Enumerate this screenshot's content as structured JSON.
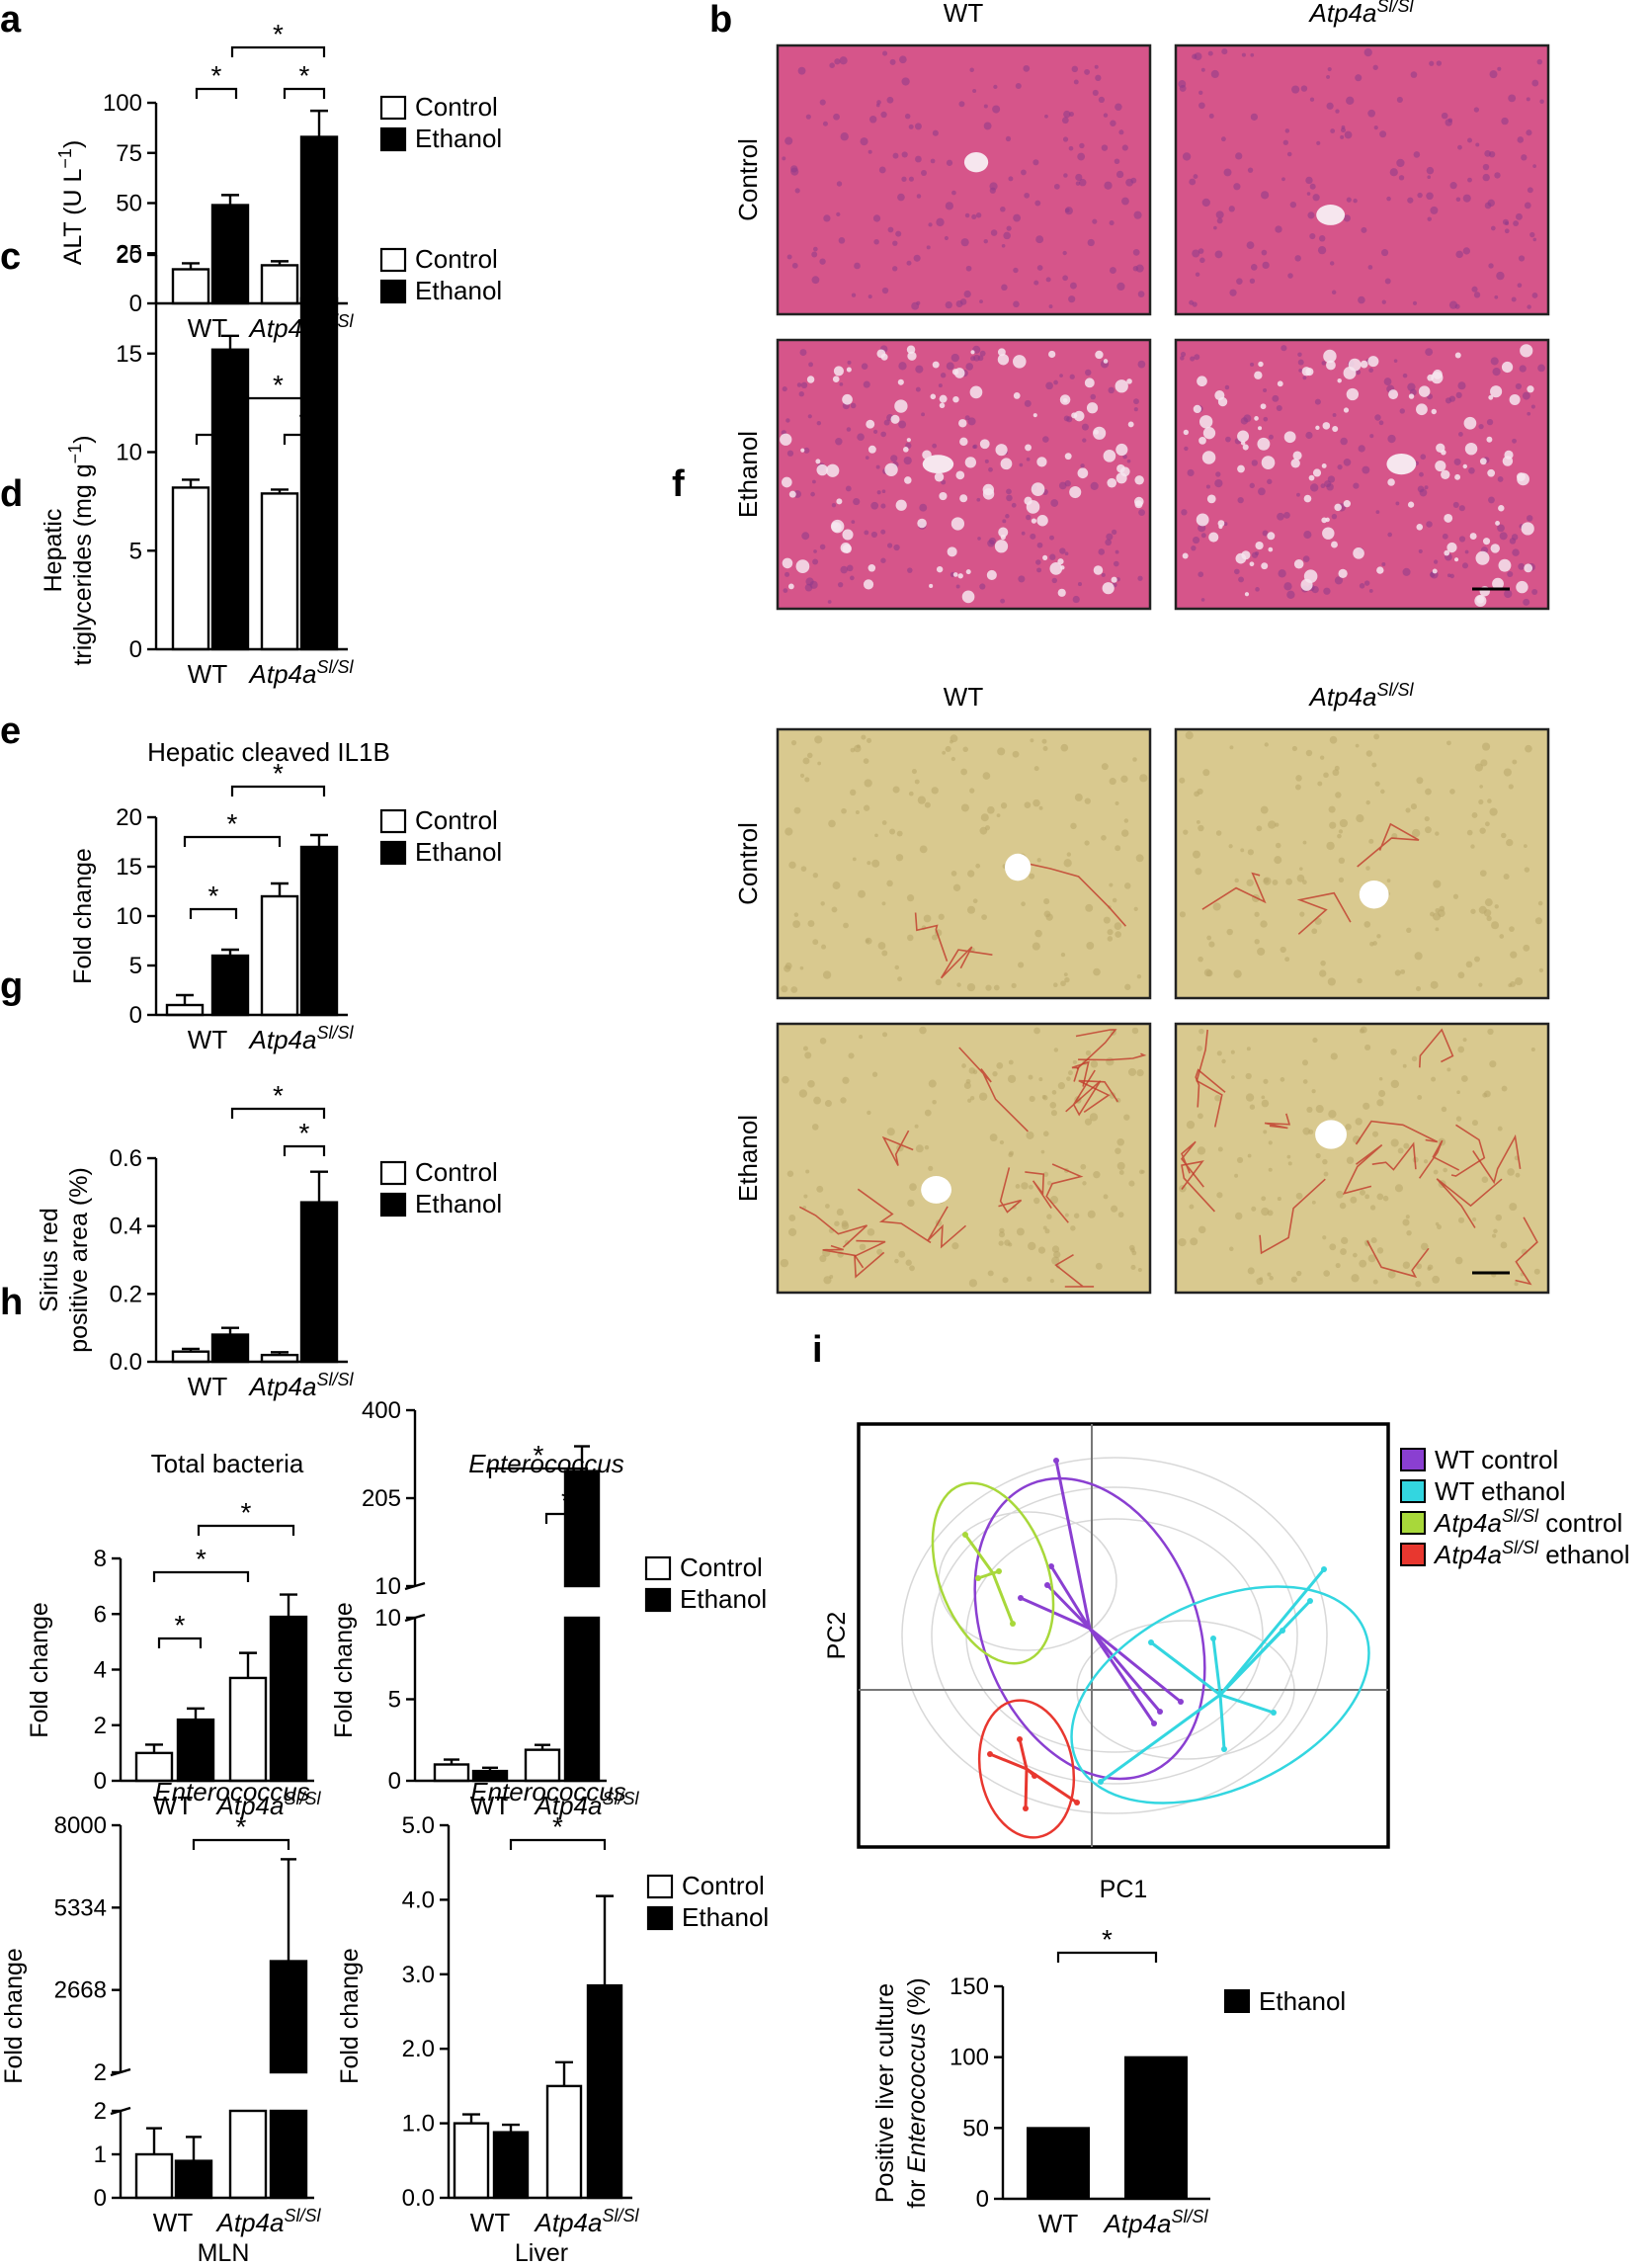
{
  "panels": [
    "a",
    "b",
    "c",
    "d",
    "e",
    "f",
    "g",
    "h",
    "i"
  ],
  "legend": {
    "control": "Control",
    "ethanol": "Ethanol"
  },
  "genotypes": {
    "wt": "WT",
    "mut": "Atp4a",
    "mut_sup": "Sl/Sl"
  },
  "star": "*",
  "micrographs": {
    "cols": [
      "WT",
      "Atp4a"
    ],
    "col_sup": "Sl/Sl",
    "rows": [
      "Control",
      "Ethanol"
    ],
    "he_colors": {
      "base": "#d6558a",
      "cells": "#8e3b8a",
      "vacuole": "#f6e6ee"
    },
    "sirius_colors": {
      "base": "#d9c98f",
      "cells": "#b8a66a",
      "fiber": "#c0392b",
      "vein": "#ffffff"
    }
  },
  "pca": {
    "xlabel": "PC1",
    "ylabel": "PC2",
    "legend": [
      {
        "label": "WT control",
        "sup": "",
        "color": "#8a3fd1"
      },
      {
        "label": "WT ethanol",
        "sup": "",
        "color": "#33d6e0"
      },
      {
        "label": "Atp4a",
        "sup": "Sl/Sl",
        "suffix": " control",
        "color": "#a8d83a"
      },
      {
        "label": "Atp4a",
        "sup": "Sl/Sl",
        "suffix": " ethanol",
        "color": "#e8372f"
      }
    ]
  },
  "chart_data": [
    {
      "id": "a",
      "type": "bar",
      "title": "",
      "ylabel": "ALT (U L",
      "ylabel_sup": "−1",
      "ylabel_end": ")",
      "ylim": [
        0,
        100
      ],
      "yticks": [
        "0",
        "25",
        "50",
        "75",
        "100"
      ],
      "categories": [
        "WT",
        "Atp4a"
      ],
      "series": [
        {
          "name": "Control",
          "values": [
            17,
            19
          ],
          "errors": [
            3,
            2
          ]
        },
        {
          "name": "Ethanol",
          "values": [
            49,
            83
          ],
          "errors": [
            5,
            13
          ]
        }
      ]
    },
    {
      "id": "c",
      "type": "bar",
      "title": "",
      "ylabel": "Hepatic",
      "ylabel2": "triglycerides (mg g",
      "ylabel2_sup": "−1",
      "ylabel2_end": ")",
      "ylim": [
        0,
        20
      ],
      "yticks": [
        "0",
        "5",
        "10",
        "15",
        "20"
      ],
      "categories": [
        "WT",
        "Atp4a"
      ],
      "series": [
        {
          "name": "Control",
          "values": [
            8.2,
            7.9
          ],
          "errors": [
            0.4,
            0.2
          ]
        },
        {
          "name": "Ethanol",
          "values": [
            15.2,
            17.8
          ],
          "errors": [
            0.7,
            0.6
          ]
        }
      ]
    },
    {
      "id": "d",
      "type": "bar",
      "title": "Hepatic cleaved IL1B",
      "ylabel": "Fold change",
      "ylim": [
        0,
        20
      ],
      "yticks": [
        "0",
        "5",
        "10",
        "15",
        "20"
      ],
      "categories": [
        "WT",
        "Atp4a"
      ],
      "series": [
        {
          "name": "Control",
          "values": [
            1.0,
            12.0
          ],
          "errors": [
            1.0,
            1.3
          ]
        },
        {
          "name": "Ethanol",
          "values": [
            6.0,
            17.0
          ],
          "errors": [
            0.6,
            1.2
          ]
        }
      ]
    },
    {
      "id": "e",
      "type": "bar",
      "title": "",
      "ylabel": "Sirius red",
      "ylabel2": "positive area (%)",
      "ylim": [
        0,
        0.6
      ],
      "yticks": [
        "0.0",
        "0.2",
        "0.4",
        "0.6"
      ],
      "categories": [
        "WT",
        "Atp4a"
      ],
      "series": [
        {
          "name": "Control",
          "values": [
            0.03,
            0.02
          ],
          "errors": [
            0.008,
            0.008
          ]
        },
        {
          "name": "Ethanol",
          "values": [
            0.08,
            0.47
          ],
          "errors": [
            0.02,
            0.09
          ]
        }
      ]
    },
    {
      "id": "g1",
      "type": "bar",
      "title": "Total bacteria",
      "ylabel": "Fold change",
      "ylim": [
        0,
        8
      ],
      "yticks": [
        "0",
        "2",
        "4",
        "6",
        "8"
      ],
      "categories": [
        "WT",
        "Atp4a"
      ],
      "series": [
        {
          "name": "Control",
          "values": [
            1.0,
            3.7
          ],
          "errors": [
            0.3,
            0.9
          ]
        },
        {
          "name": "Ethanol",
          "values": [
            2.2,
            5.9
          ],
          "errors": [
            0.4,
            0.8
          ]
        }
      ]
    },
    {
      "id": "g2",
      "type": "bar",
      "title": "Enterococcus",
      "ylabel": "Fold change",
      "yticks_low": [
        "0",
        "5",
        "10"
      ],
      "yticks_high": [
        "10",
        "205",
        "400"
      ],
      "categories": [
        "WT",
        "Atp4a"
      ],
      "series": [
        {
          "name": "Control",
          "values": [
            1.0,
            1.9
          ],
          "errors": [
            0.3,
            0.3
          ]
        },
        {
          "name": "Ethanol",
          "values": [
            0.6,
            265
          ],
          "errors": [
            0.2,
            55
          ]
        }
      ]
    },
    {
      "id": "h1",
      "type": "bar",
      "title": "Enterococcus",
      "xlabel": "MLN",
      "ylabel": "Fold change",
      "yticks_low": [
        "0",
        "1",
        "2"
      ],
      "yticks_high": [
        "2",
        "2668",
        "5334",
        "8000"
      ],
      "categories": [
        "WT",
        "Atp4a"
      ],
      "series": [
        {
          "name": "Control",
          "values": [
            1.0,
            2.0
          ],
          "errors": [
            0.6,
            0
          ]
        },
        {
          "name": "Ethanol",
          "values": [
            0.85,
            3600
          ],
          "errors": [
            0.55,
            3300
          ]
        }
      ]
    },
    {
      "id": "h2",
      "type": "bar",
      "title": "Enterococcus",
      "xlabel": "Liver",
      "ylabel": "Fold change",
      "ylim": [
        0,
        5
      ],
      "yticks": [
        "0.0",
        "1.0",
        "2.0",
        "3.0",
        "4.0",
        "5.0"
      ],
      "categories": [
        "WT",
        "Atp4a"
      ],
      "series": [
        {
          "name": "Control",
          "values": [
            1.0,
            1.5
          ],
          "errors": [
            0.12,
            0.32
          ]
        },
        {
          "name": "Ethanol",
          "values": [
            0.88,
            2.85
          ],
          "errors": [
            0.1,
            1.2
          ]
        }
      ]
    },
    {
      "id": "i",
      "type": "bar",
      "title": "",
      "ylabel": "Positive liver culture",
      "ylabel2_pre": "for ",
      "ylabel2": "Enterococcus",
      "ylabel2_end": " (%)",
      "ylim": [
        0,
        150
      ],
      "yticks": [
        "0",
        "50",
        "100",
        "150"
      ],
      "categories": [
        "WT",
        "Atp4a"
      ],
      "series": [
        {
          "name": "Ethanol",
          "values": [
            50,
            100
          ]
        }
      ]
    }
  ]
}
